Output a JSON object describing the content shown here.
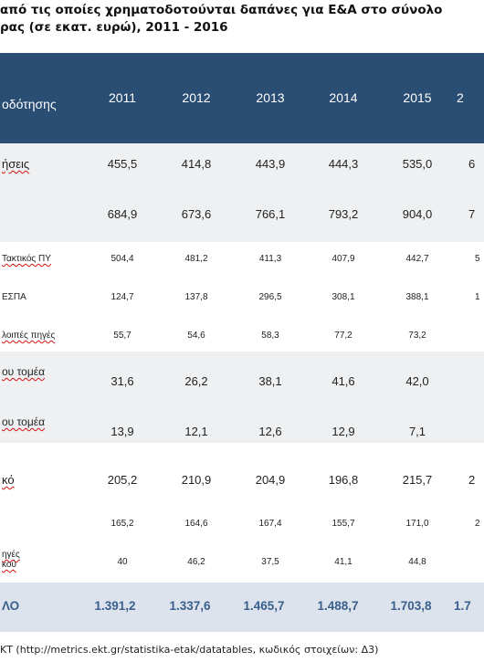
{
  "title": {
    "line1": "από τις οποίες χρηματοδοτούνται δαπάνες για Ε&Α στο σύνολο",
    "line2": "ρας (σε εκατ. ευρώ), 2011 - 2016"
  },
  "header": {
    "label": "οδότησης",
    "years": [
      "2011",
      "2012",
      "2013",
      "2014",
      "2015",
      "2"
    ]
  },
  "rows": [
    {
      "label": "ήσεις",
      "values": [
        "455,5",
        "414,8",
        "443,9",
        "444,3",
        "535,0",
        "6"
      ]
    },
    {
      "label": "",
      "values": [
        "684,9",
        "673,6",
        "766,1",
        "793,2",
        "904,0",
        "7"
      ]
    },
    {
      "label": "Τακτικός ΠΥ",
      "values": [
        "504,4",
        "481,2",
        "411,3",
        "407,9",
        "442,7",
        "5"
      ]
    },
    {
      "label": "ΕΣΠΑ",
      "values": [
        "124,7",
        "137,8",
        "296,5",
        "308,1",
        "388,1",
        "1"
      ]
    },
    {
      "label": "λοιπές πηγές",
      "values": [
        "55,7",
        "54,6",
        "58,3",
        "77,2",
        "73,2",
        ""
      ]
    },
    {
      "label": "ου τομέα",
      "values": [
        "31,6",
        "26,2",
        "38,1",
        "41,6",
        "42,0",
        ""
      ]
    },
    {
      "label": "ου τομέα",
      "values": [
        "13,9",
        "12,1",
        "12,6",
        "12,9",
        "7,1",
        ""
      ]
    },
    {
      "label": "κό",
      "values": [
        "205,2",
        "210,9",
        "204,9",
        "196,8",
        "215,7",
        "2"
      ]
    },
    {
      "label": "",
      "values": [
        "165,2",
        "164,6",
        "167,4",
        "155,7",
        "171,0",
        "2"
      ]
    },
    {
      "label": "ηγές\nκού",
      "values": [
        "40",
        "46,2",
        "37,5",
        "41,1",
        "44,8",
        ""
      ]
    }
  ],
  "total": {
    "label": "ΛΟ",
    "values": [
      "1.391,2",
      "1.337,6",
      "1.465,7",
      "1.488,7",
      "1.703,8",
      "1.7"
    ]
  },
  "source": "ΚΤ (http://metrics.ekt.gr/statistika-etak/datatables, κωδικός στοιχείων: Δ3)"
}
